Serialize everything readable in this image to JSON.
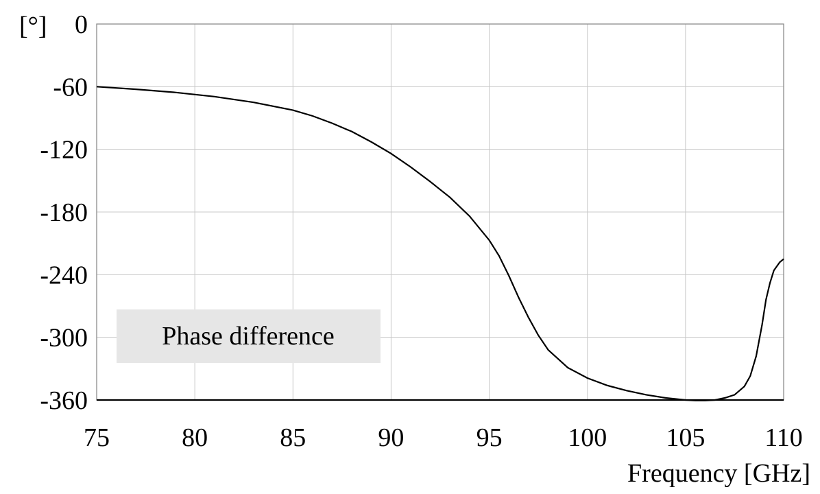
{
  "chart_data": {
    "type": "line",
    "title": "",
    "xlabel": "Frequency [GHz]",
    "ylabel": "",
    "y_unit_label": "[°]",
    "xlim": [
      75,
      110
    ],
    "ylim": [
      -360,
      0
    ],
    "x_ticks": [
      75,
      80,
      85,
      90,
      95,
      100,
      105,
      110
    ],
    "y_ticks": [
      0,
      -60,
      -120,
      -180,
      -240,
      -300,
      -360
    ],
    "grid": true,
    "legend_box_label": "Phase difference",
    "legend_box_color": "#e6e6e6",
    "series": [
      {
        "color": "#000000",
        "x": [
          75,
          77,
          79,
          81,
          83,
          85,
          86,
          87,
          88,
          89,
          90,
          91,
          92,
          93,
          94,
          95,
          95.5,
          96,
          96.5,
          97,
          97.5,
          98,
          99,
          100,
          101,
          102,
          103,
          104,
          105,
          105.5,
          106,
          106.5,
          107,
          107.5,
          108,
          108.3,
          108.6,
          108.9,
          109.1,
          109.3,
          109.5,
          109.8,
          110
        ],
        "y": [
          -60,
          -62.5,
          -65.5,
          -69.5,
          -75,
          -82.5,
          -88,
          -95,
          -103,
          -113,
          -124,
          -137,
          -151,
          -166,
          -184,
          -207,
          -222,
          -241,
          -262,
          -281,
          -298,
          -312,
          -329,
          -339,
          -346,
          -351,
          -355,
          -358,
          -360,
          -360.5,
          -360.5,
          -360,
          -358,
          -355,
          -347,
          -337,
          -318,
          -288,
          -264,
          -248,
          -236,
          -228,
          -225
        ]
      },
      {
        "color": "#000000",
        "x": [
          75,
          110
        ],
        "y": [
          -360,
          -360
        ]
      }
    ]
  }
}
